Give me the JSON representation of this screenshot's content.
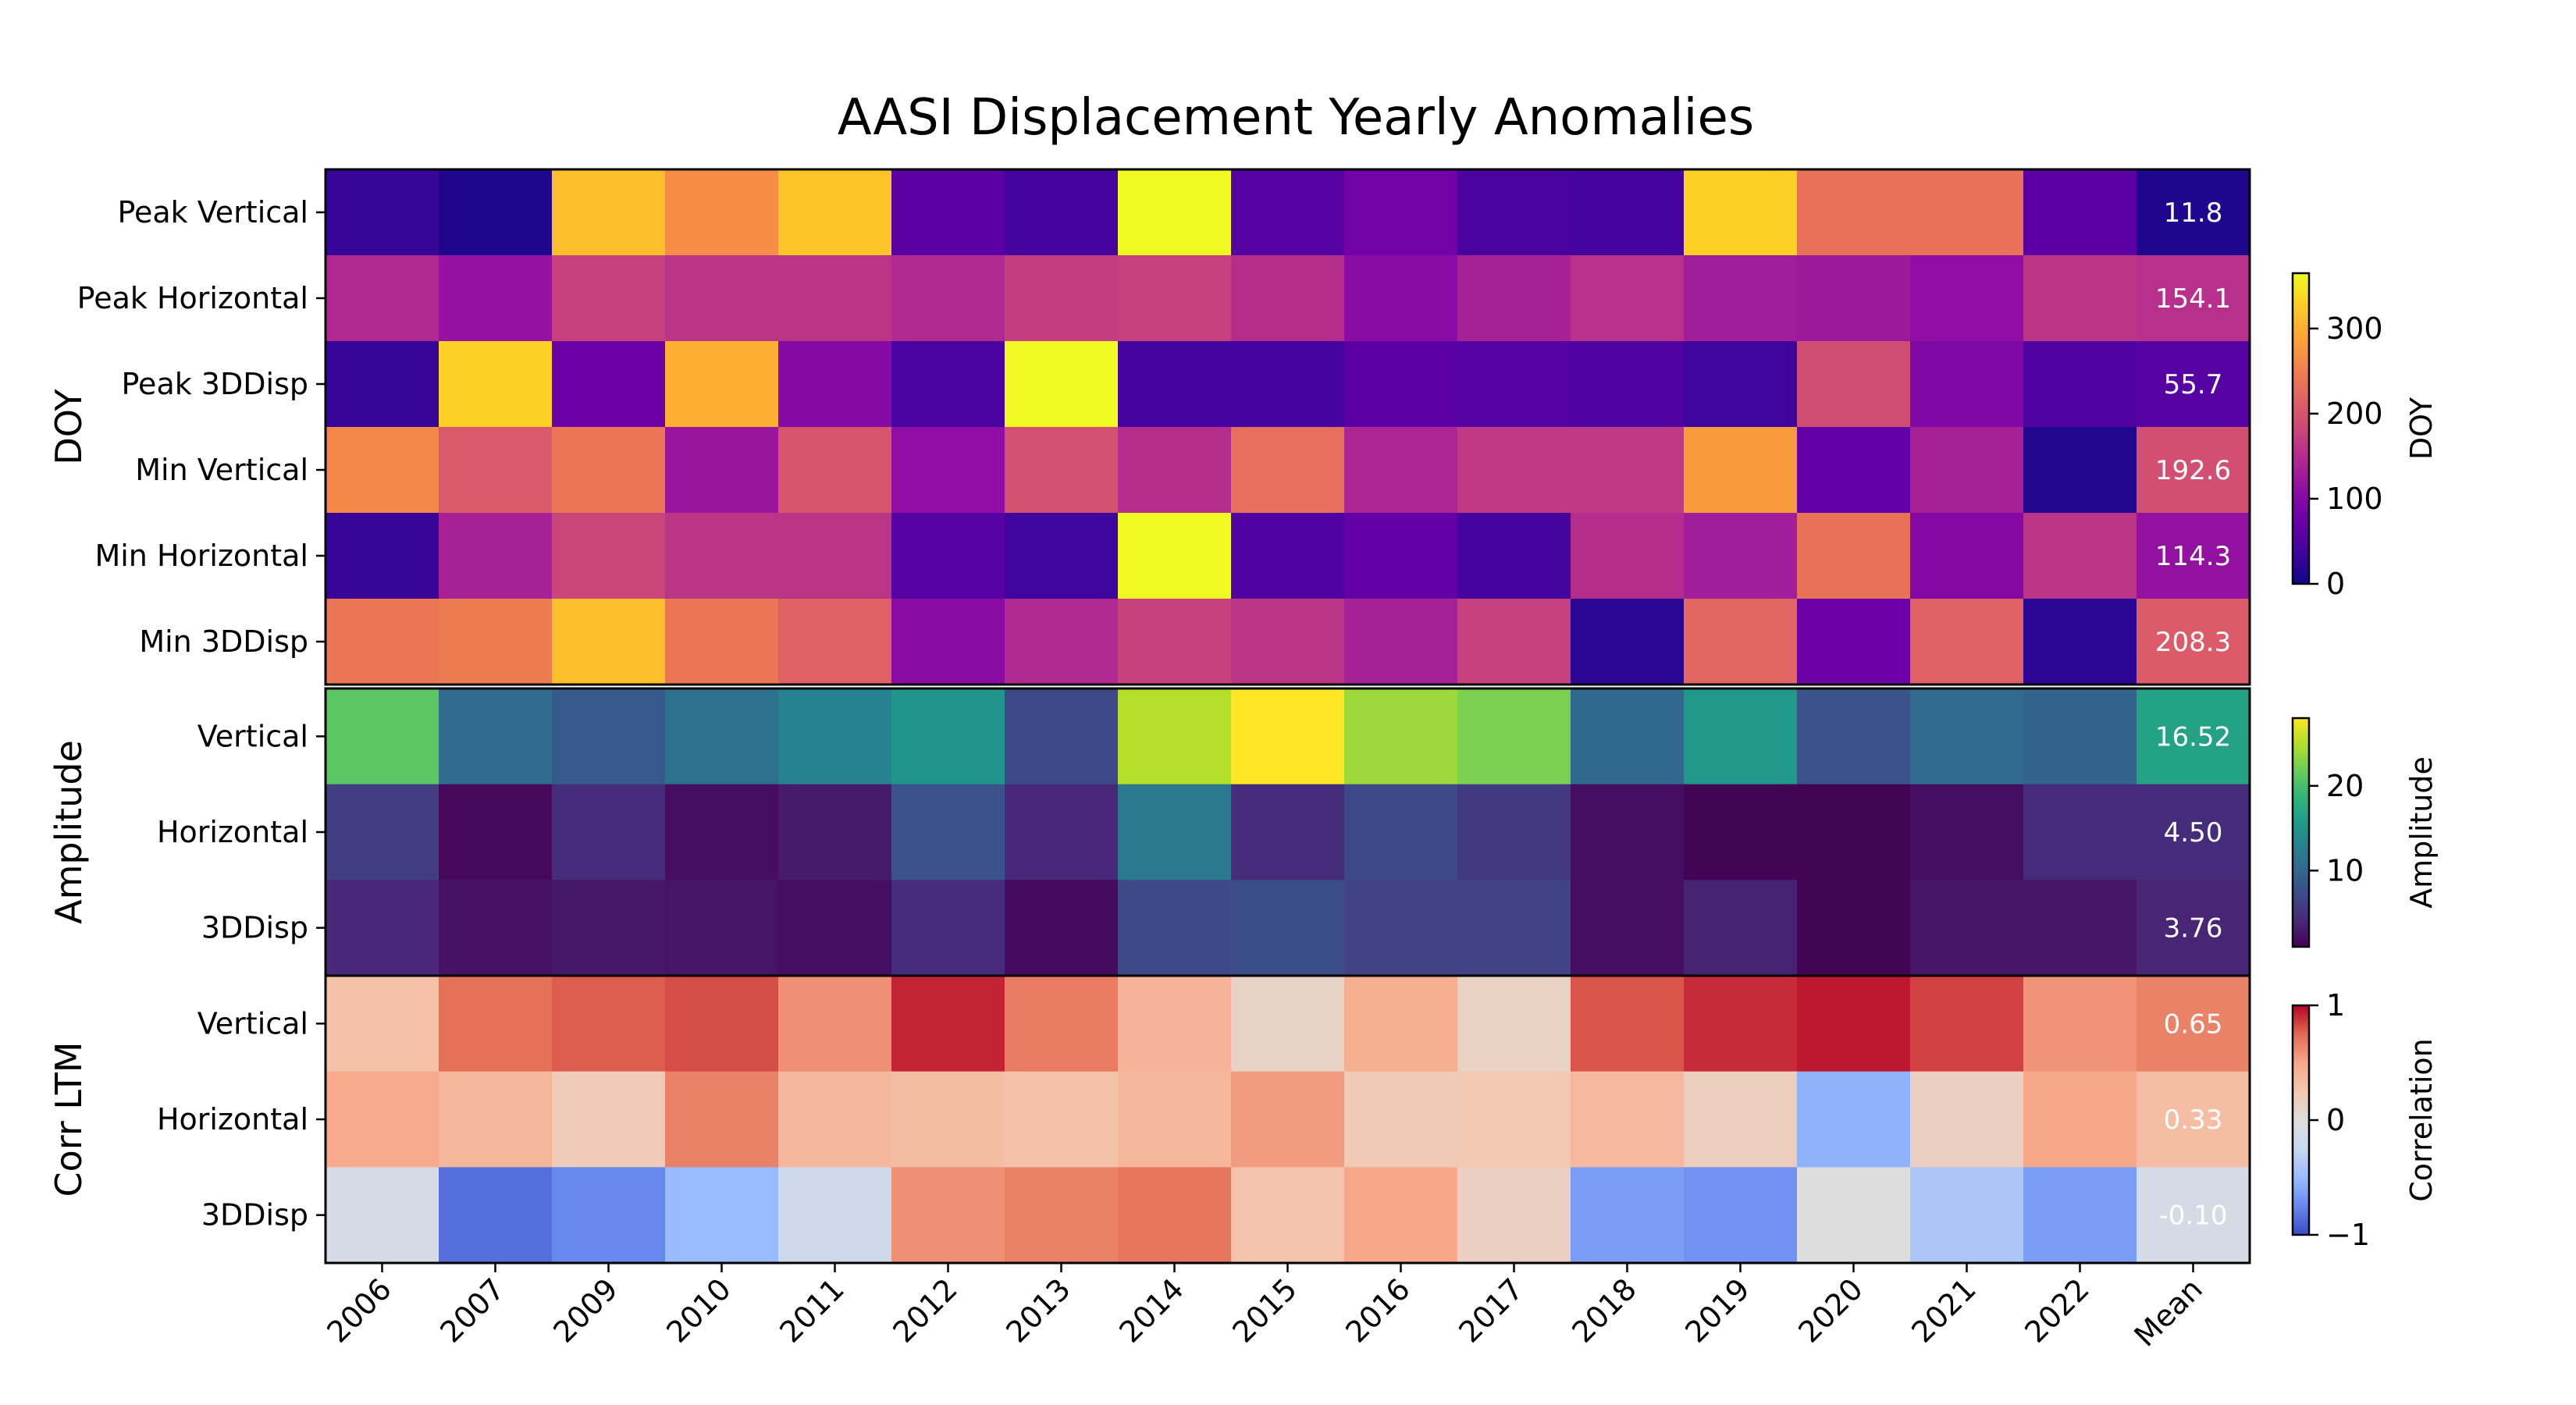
{
  "chart_data": {
    "type": "heatmap",
    "title": "AASI Displacement Yearly Anomalies",
    "columns": [
      "2006",
      "2007",
      "2009",
      "2010",
      "2011",
      "2012",
      "2013",
      "2014",
      "2015",
      "2016",
      "2017",
      "2018",
      "2019",
      "2020",
      "2021",
      "2022",
      "Mean"
    ],
    "groups": [
      {
        "name": "DOY",
        "colormap": "plasma",
        "colorbar": {
          "label": "DOY",
          "range": [
            0,
            365
          ],
          "ticks": [
            "0",
            "100",
            "200",
            "300"
          ],
          "tick_values": [
            0,
            100,
            200,
            300
          ]
        },
        "rows": [
          {
            "label": "Peak Vertical",
            "values": [
              30,
              12,
              315,
              265,
              320,
              60,
              40,
              365,
              55,
              80,
              45,
              40,
              330,
              235,
              235,
              60,
              11.8
            ],
            "mean_label": "11.8"
          },
          {
            "label": "Peak Horizontal",
            "values": [
              145,
              115,
              175,
              160,
              160,
              145,
              170,
              175,
              150,
              105,
              135,
              155,
              130,
              125,
              110,
              160,
              154.1
            ],
            "mean_label": "154.1"
          },
          {
            "label": "Peak 3DDisp",
            "values": [
              30,
              330,
              75,
              300,
              100,
              45,
              365,
              40,
              40,
              60,
              55,
              50,
              35,
              190,
              95,
              50,
              55.7
            ],
            "mean_label": "55.7"
          },
          {
            "label": "Min Vertical",
            "values": [
              260,
              205,
              240,
              120,
              200,
              110,
              195,
              150,
              230,
              140,
              165,
              165,
              280,
              65,
              135,
              15,
              192.6
            ],
            "mean_label": "192.6"
          },
          {
            "label": "Min Horizontal",
            "values": [
              30,
              135,
              180,
              160,
              160,
              55,
              35,
              365,
              50,
              65,
              40,
              150,
              130,
              235,
              100,
              160,
              114.3
            ],
            "mean_label": "114.3"
          },
          {
            "label": "Min 3DDisp",
            "values": [
              240,
              245,
              315,
              240,
              215,
              105,
              145,
              175,
              160,
              135,
              175,
              20,
              220,
              75,
              215,
              20,
              208.3
            ],
            "mean_label": "208.3"
          }
        ]
      },
      {
        "name": "Amplitude",
        "colormap": "viridis",
        "colorbar": {
          "label": "Amplitude",
          "range": [
            1,
            28
          ],
          "ticks": [
            "10",
            "20"
          ],
          "tick_values": [
            10,
            20
          ]
        },
        "rows": [
          {
            "label": "Vertical",
            "values": [
              21,
              10.5,
              8.5,
              11,
              13,
              15,
              7,
              25,
              28,
              24,
              22.5,
              10,
              15.5,
              8,
              10.5,
              9.5,
              16.52
            ],
            "mean_label": "16.52"
          },
          {
            "label": "Horizontal",
            "values": [
              6,
              1.5,
              4.5,
              2,
              3,
              8,
              4,
              12,
              4.5,
              7,
              5.5,
              2,
              1.2,
              1.2,
              2,
              4.5,
              4.5
            ],
            "mean_label": "4.50"
          },
          {
            "label": "3DDisp",
            "values": [
              4,
              2.2,
              2.8,
              2.5,
              2,
              4.5,
              1.8,
              7,
              7.5,
              6.5,
              6.5,
              2,
              3.5,
              1.2,
              2.5,
              2.5,
              3.76
            ],
            "mean_label": "3.76"
          }
        ]
      },
      {
        "name": "Corr LTM",
        "colormap": "coolwarm",
        "colorbar": {
          "label": "Correlation",
          "range": [
            -1,
            1
          ],
          "ticks": [
            "−1",
            "0",
            "1"
          ],
          "tick_values": [
            -1,
            0,
            1
          ]
        },
        "rows": [
          {
            "label": "Vertical",
            "values": [
              0.3,
              0.72,
              0.78,
              0.82,
              0.6,
              0.92,
              0.68,
              0.42,
              0.12,
              0.45,
              0.14,
              0.8,
              0.9,
              0.95,
              0.85,
              0.58,
              0.65
            ],
            "mean_label": "0.65"
          },
          {
            "label": "Horizontal",
            "values": [
              0.48,
              0.38,
              0.2,
              0.65,
              0.38,
              0.34,
              0.3,
              0.38,
              0.55,
              0.22,
              0.24,
              0.36,
              0.18,
              -0.55,
              0.16,
              0.5,
              0.33
            ],
            "mean_label": "0.33"
          },
          {
            "label": "3DDisp",
            "values": [
              -0.1,
              -0.85,
              -0.75,
              -0.5,
              -0.2,
              0.6,
              0.65,
              0.7,
              0.28,
              0.5,
              0.15,
              -0.65,
              -0.7,
              0.0,
              -0.4,
              -0.65,
              -0.1
            ],
            "mean_label": "-0.10"
          }
        ]
      }
    ]
  }
}
